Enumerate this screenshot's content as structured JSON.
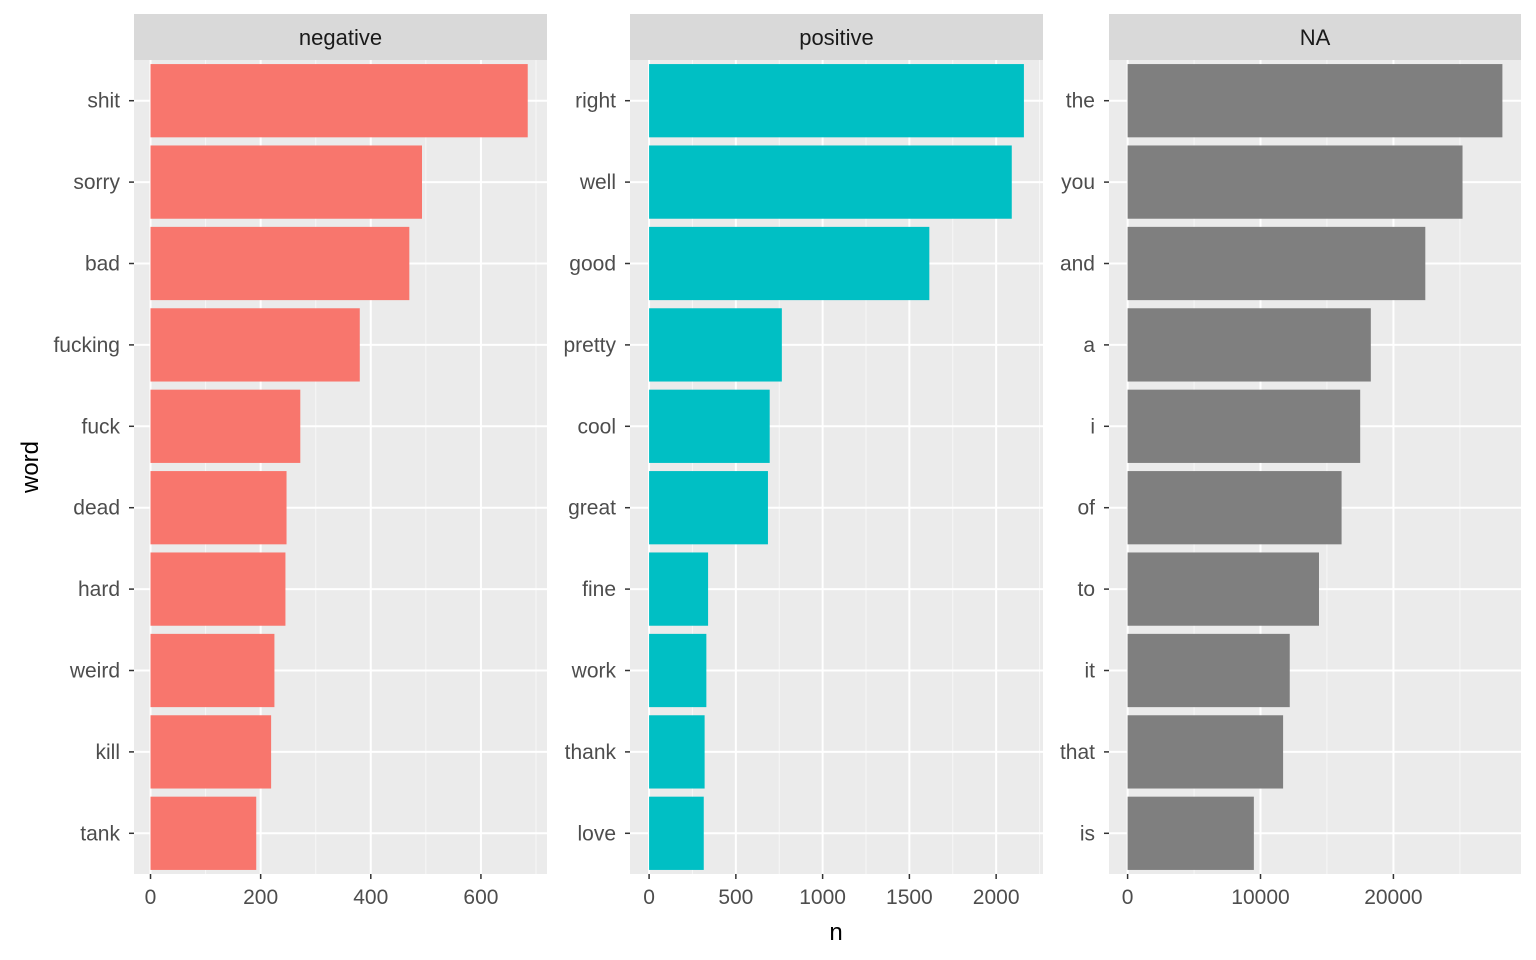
{
  "chart_data": {
    "type": "bar",
    "orientation": "horizontal",
    "xlabel": "n",
    "ylabel": "word",
    "facets": [
      {
        "name": "negative",
        "color": "#F8766D",
        "categories": [
          "shit",
          "sorry",
          "bad",
          "fucking",
          "fuck",
          "dead",
          "hard",
          "weird",
          "kill",
          "tank"
        ],
        "values": [
          685,
          493,
          470,
          380,
          272,
          247,
          245,
          225,
          219,
          192
        ],
        "xlim": [
          -30,
          720
        ],
        "xticks": [
          0,
          200,
          400,
          600
        ],
        "xtick_labels": [
          "0",
          "200",
          "400",
          "600"
        ]
      },
      {
        "name": "positive",
        "color": "#00BFC4",
        "categories": [
          "right",
          "well",
          "good",
          "pretty",
          "cool",
          "great",
          "fine",
          "work",
          "thank",
          "love"
        ],
        "values": [
          2160,
          2090,
          1615,
          765,
          695,
          685,
          340,
          330,
          320,
          315
        ],
        "xlim": [
          -110,
          2270
        ],
        "xticks": [
          0,
          500,
          1000,
          1500,
          2000
        ],
        "xtick_labels": [
          "0",
          "500",
          "1000",
          "1500",
          "2000"
        ]
      },
      {
        "name": "NA",
        "color": "#7F7F7F",
        "categories": [
          "the",
          "you",
          "and",
          "a",
          "i",
          "of",
          "to",
          "it",
          "that",
          "is"
        ],
        "values": [
          28200,
          25200,
          22400,
          18300,
          17500,
          16100,
          14400,
          12200,
          11700,
          9500
        ],
        "xlim": [
          -1400,
          29600
        ],
        "xticks": [
          0,
          10000,
          20000
        ],
        "xtick_labels": [
          "0",
          "10000",
          "20000"
        ]
      }
    ]
  }
}
